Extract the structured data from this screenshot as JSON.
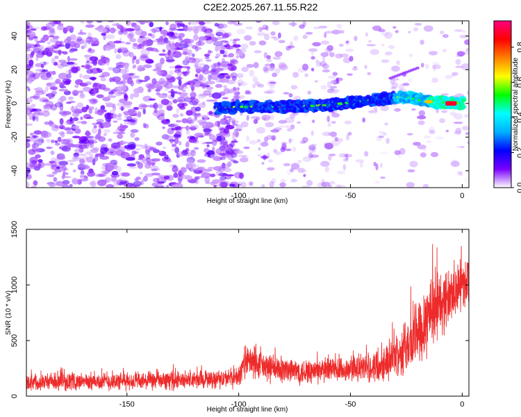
{
  "figure_title": "C2E2.2025.267.11.55.R22",
  "chart_data": [
    {
      "type": "heatmap",
      "title": "C2E2.2025.267.11.55.R22",
      "xlabel": "Height of straight line (km)",
      "ylabel": "Frequency (Hz)",
      "xlim": [
        -195,
        3
      ],
      "ylim": [
        -50,
        49
      ],
      "xticks": [
        -150,
        -100,
        -50,
        0
      ],
      "yticks": [
        -40,
        -20,
        0,
        20,
        40
      ],
      "grid": false,
      "signal_track": {
        "description_points_km_hz": [
          [
            -110,
            -3
          ],
          [
            -100,
            -2
          ],
          [
            -80,
            -2
          ],
          [
            -60,
            -1
          ],
          [
            -40,
            2
          ],
          [
            -25,
            4
          ],
          [
            -15,
            1
          ],
          [
            0,
            0
          ]
        ],
        "peak_amplitude_height_km": -5
      },
      "colorbar": {
        "label": "Normalized spectral amplitude",
        "range": [
          0.0,
          0.95
        ],
        "ticks": [
          0.0,
          0.2,
          0.4,
          0.6,
          0.8
        ],
        "tick_labels": [
          "0.0",
          "0.2",
          "0.4",
          "0.6",
          "0.8"
        ],
        "colormap": [
          "#ffffff",
          "#7a00ff",
          "#0000ff",
          "#00b0ff",
          "#00ffff",
          "#00ff00",
          "#ffff00",
          "#ff8000",
          "#ff0000",
          "#ff0080"
        ]
      }
    },
    {
      "type": "line",
      "xlabel": "Height of straight line (km)",
      "ylabel": "SNR (10 * v/v)",
      "xlim": [
        -195,
        3
      ],
      "ylim": [
        0,
        1500
      ],
      "xticks": [
        -150,
        -100,
        -50,
        0
      ],
      "yticks": [
        0,
        500,
        1000,
        1500
      ],
      "grid": false,
      "series": [
        {
          "name": "SNR",
          "color": "#ee2b2b",
          "envelope_x": [
            -195,
            -150,
            -110,
            -100,
            -97,
            -85,
            -70,
            -55,
            -40,
            -30,
            -22,
            -18,
            -14,
            -8,
            0,
            3
          ],
          "mean_y": [
            130,
            130,
            150,
            170,
            320,
            240,
            220,
            230,
            260,
            350,
            500,
            650,
            780,
            850,
            1000,
            1050
          ],
          "amp_y": [
            90,
            95,
            100,
            110,
            180,
            150,
            140,
            140,
            160,
            220,
            330,
            420,
            450,
            330,
            260,
            240
          ]
        }
      ]
    }
  ]
}
